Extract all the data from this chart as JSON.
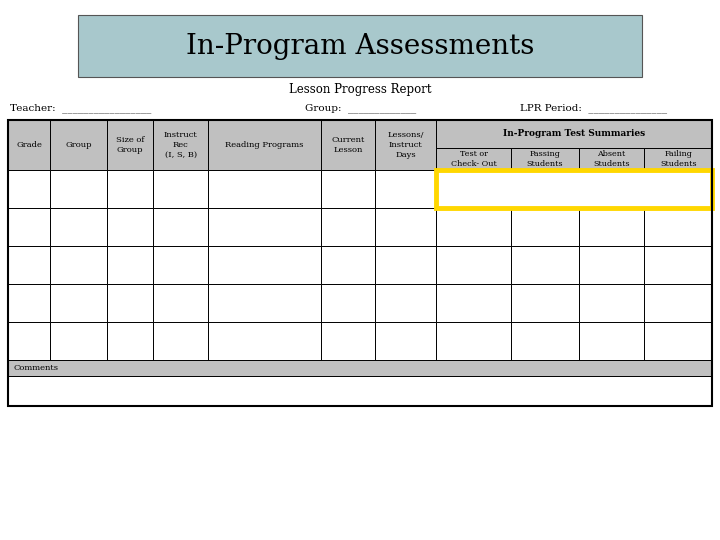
{
  "title": "In-Program Assessments",
  "subtitle": "Lesson Progress Report",
  "title_bg_color": "#a8c8cc",
  "teacher_label": "Teacher:  _________________",
  "group_label": "Group:  _____________",
  "lpr_label": "LPR Period:  _______________",
  "header_bg_color": "#c0c0c0",
  "yellow_highlight": "#FFD700",
  "comments_bg": "#c0c0c0",
  "n_data_rows": 5,
  "background_color": "#ffffff",
  "col_widths_raw": [
    45,
    60,
    50,
    58,
    120,
    58,
    65,
    80,
    72,
    70,
    72
  ],
  "header_labels_7cols": [
    "Grade",
    "Group",
    "Size of\nGroup",
    "Instruct\nRec\n(I, S, B)",
    "Reading Programs",
    "Current\nLesson",
    "Lessons/\nInstruct\nDays"
  ],
  "subheaders": [
    "Test or\nCheck- Out",
    "Passing\nStudents",
    "Absent\nStudents",
    "Failing\nStudents"
  ],
  "merged_header": "In-Program Test Summaries"
}
